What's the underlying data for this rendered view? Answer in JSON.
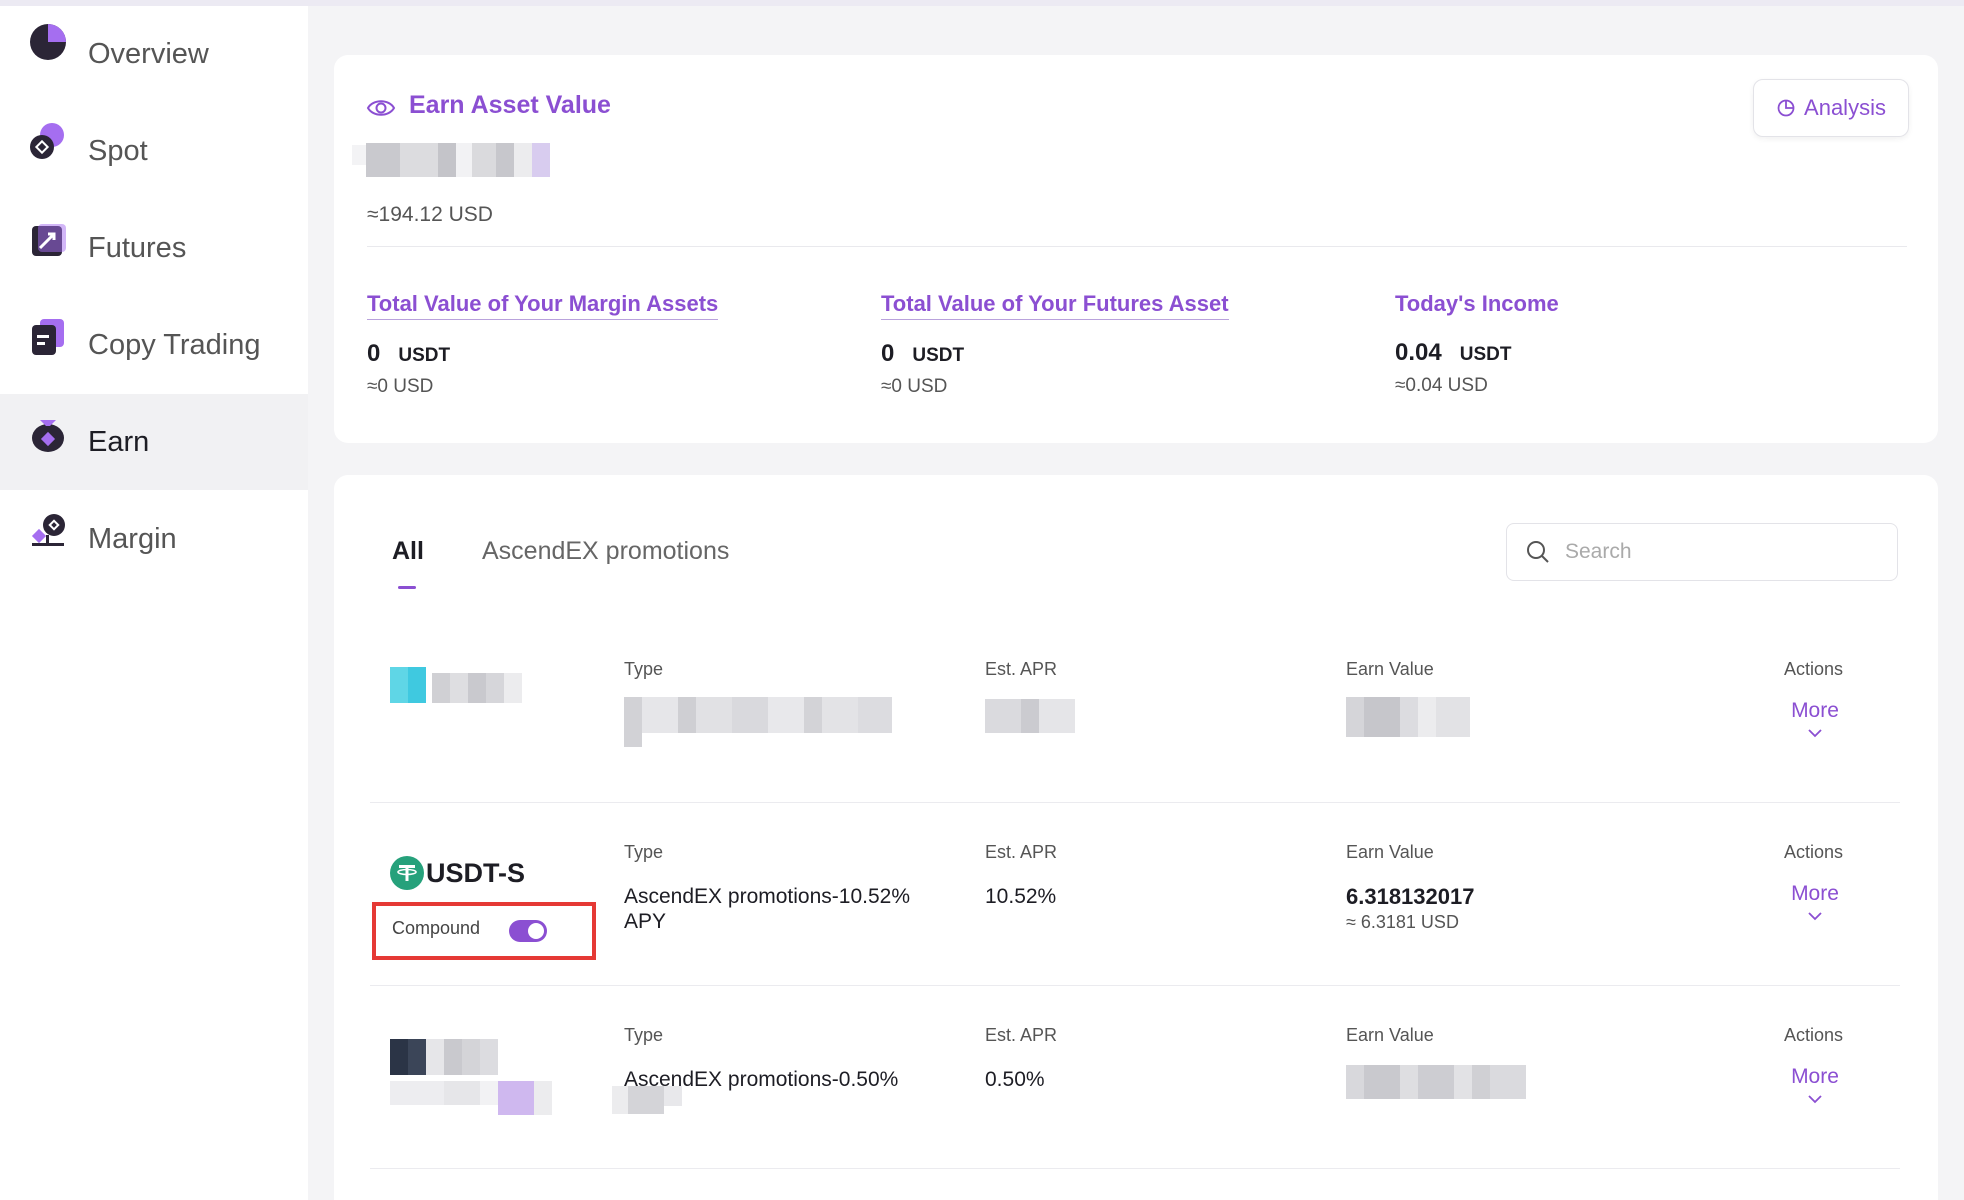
{
  "sidebar": {
    "items": [
      {
        "label": "Overview",
        "icon": "pie-chart-icon"
      },
      {
        "label": "Spot",
        "icon": "spot-coins-icon"
      },
      {
        "label": "Futures",
        "icon": "futures-chart-icon"
      },
      {
        "label": "Copy Trading",
        "icon": "copy-trading-icon"
      },
      {
        "label": "Earn",
        "icon": "money-bag-icon",
        "active": true
      },
      {
        "label": "Margin",
        "icon": "margin-scale-icon"
      }
    ]
  },
  "summary": {
    "title": "Earn Asset Value",
    "usd_approx": "≈194.12 USD",
    "analysis_label": "Analysis",
    "stats": [
      {
        "title": "Total Value of Your Margin Assets",
        "value": "0",
        "unit": "USDT",
        "usd": "≈0 USD"
      },
      {
        "title": "Total Value of Your Futures Asset",
        "value": "0",
        "unit": "USDT",
        "usd": "≈0 USD"
      },
      {
        "title": "Today's Income",
        "value": "0.04",
        "unit": "USDT",
        "usd": "≈0.04 USD"
      }
    ]
  },
  "tabs": [
    {
      "label": "All",
      "active": true
    },
    {
      "label": "AscendEX promotions"
    }
  ],
  "search": {
    "placeholder": "Search"
  },
  "columns": {
    "type": "Type",
    "apr": "Est. APR",
    "earn_value": "Earn Value",
    "actions": "Actions"
  },
  "rows": [
    {
      "coin": "",
      "type": "",
      "apr": "",
      "earn_value": "",
      "earn_usd": "",
      "action": "More"
    },
    {
      "coin": "USDT-S",
      "compound_label": "Compound",
      "compound_on": true,
      "type_line1": "AscendEX promotions-10.52%",
      "type_line2": "APY",
      "apr": "10.52%",
      "earn_value": "6.318132017",
      "earn_usd": "≈ 6.3181 USD",
      "action": "More"
    },
    {
      "coin": "",
      "type": "AscendEX promotions-0.50%",
      "apr": "0.50%",
      "earn_value": "",
      "earn_usd": "",
      "action": "More"
    }
  ],
  "colors": {
    "accent": "#8b4fd2",
    "highlight_box": "#e53935",
    "tether_green": "#26a17b"
  }
}
